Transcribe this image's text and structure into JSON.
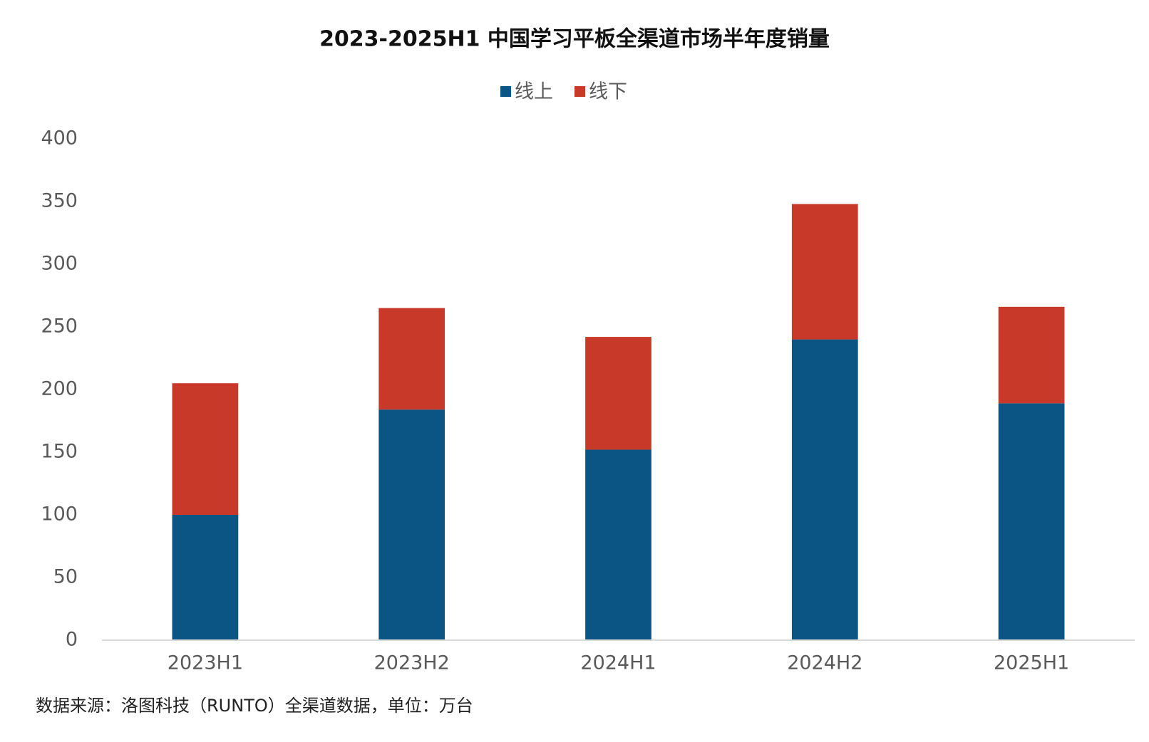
{
  "chart_data": {
    "type": "stacked_bar",
    "title": "2023-2025H1 中国学习平板全渠道市场半年度销量",
    "source": "数据来源：洛图科技（RUNTO）全渠道数据，单位：万台",
    "categories": [
      "2023H1",
      "2023H2",
      "2024H1",
      "2024H2",
      "2025H1"
    ],
    "series": [
      {
        "name": "线上",
        "color": "#0b5585",
        "values": [
          100,
          184,
          152,
          240,
          189
        ]
      },
      {
        "name": "线下",
        "color": "#c9392a",
        "values": [
          105,
          81,
          90,
          108,
          77
        ]
      }
    ],
    "ylim": [
      0,
      400
    ],
    "yticks": [
      0,
      50,
      100,
      150,
      200,
      250,
      300,
      350,
      400
    ],
    "grid": false,
    "legend": "top"
  }
}
